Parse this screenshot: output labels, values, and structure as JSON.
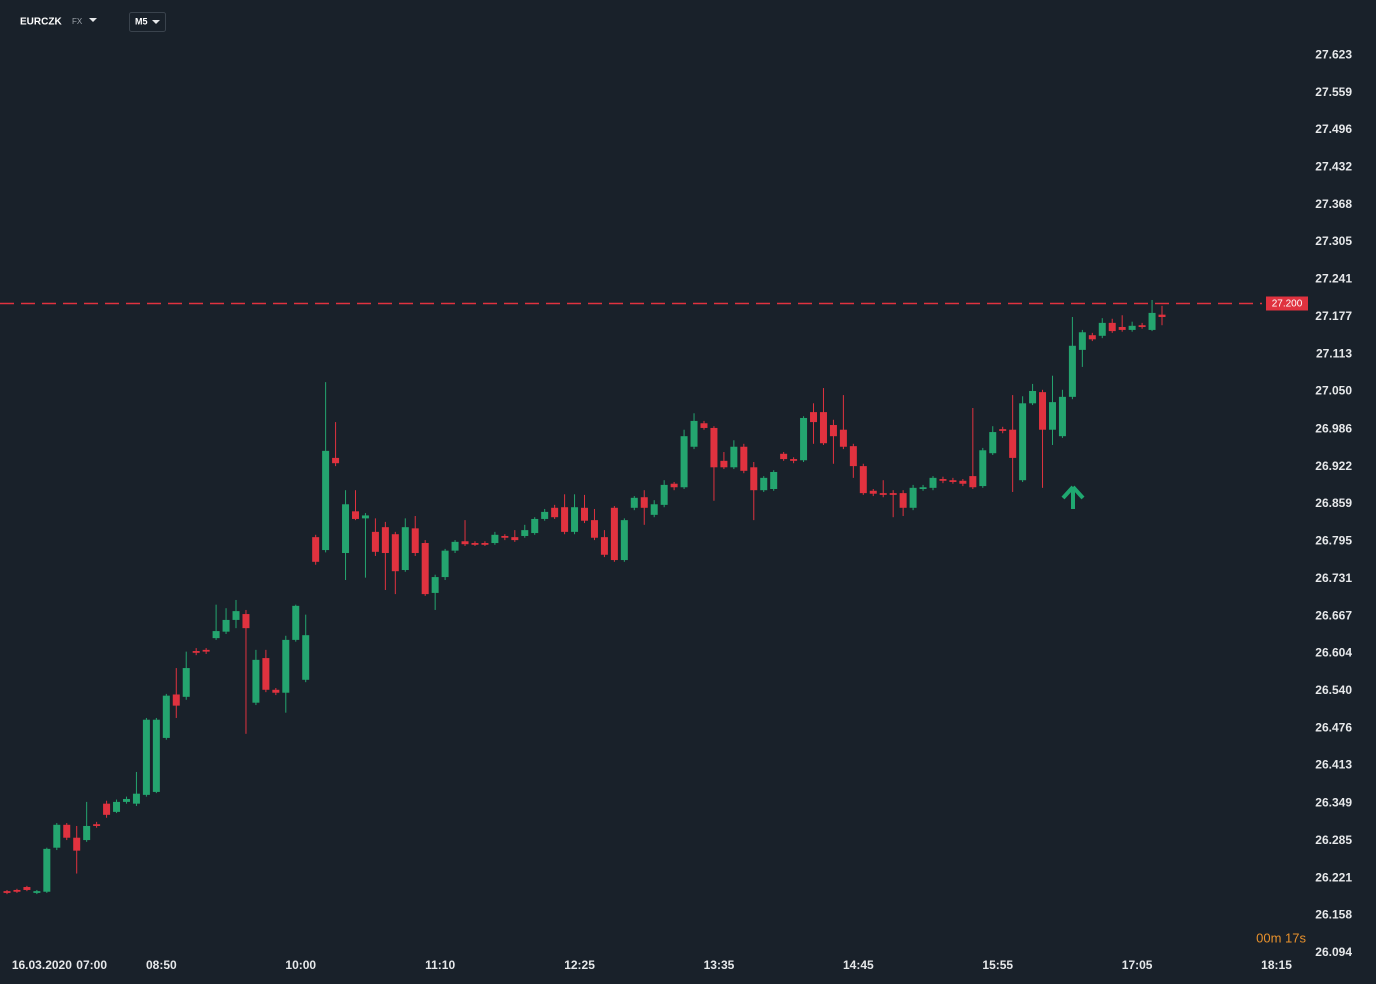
{
  "header": {
    "symbol": "EURCZK",
    "market": "FX",
    "timeframe": "M5",
    "countdown": "00m 17s"
  },
  "chart_data": {
    "type": "candlestick",
    "categories": [
      null,
      null,
      null,
      "16.03.2020",
      null,
      null,
      null,
      null,
      "07:00",
      null,
      null,
      null,
      null,
      null,
      null,
      "08:50",
      null,
      null,
      null,
      null,
      null,
      null,
      null,
      null,
      null,
      null,
      null,
      null,
      null,
      "10:00",
      null,
      null,
      null,
      null,
      null,
      null,
      null,
      null,
      null,
      null,
      null,
      null,
      null,
      "11:10",
      null,
      null,
      null,
      null,
      null,
      null,
      null,
      null,
      null,
      null,
      null,
      null,
      null,
      "12:25",
      null,
      null,
      null,
      null,
      null,
      null,
      null,
      null,
      null,
      null,
      null,
      null,
      null,
      "13:35",
      null,
      null,
      null,
      null,
      null,
      null,
      null,
      null,
      null,
      null,
      null,
      null,
      null,
      "14:45",
      null,
      null,
      null,
      null,
      null,
      null,
      null,
      null,
      null,
      null,
      null,
      null,
      null,
      "15:55",
      null,
      null,
      null,
      null,
      null,
      null,
      null,
      null,
      null,
      null,
      null,
      null,
      null,
      "17:05",
      null,
      null,
      null,
      null,
      null,
      null,
      null,
      null,
      null,
      null,
      null,
      null,
      null,
      "18:15"
    ],
    "open": [
      26.199,
      26.201,
      26.206,
      26.196,
      26.198,
      26.273,
      26.312,
      26.29,
      26.286,
      26.313,
      26.348,
      26.334,
      26.351,
      26.348,
      26.363,
      26.368,
      26.46,
      26.534,
      26.53,
      26.608,
      26.61,
      26.63,
      26.641,
      26.661,
      26.671,
      26.52,
      26.596,
      26.542,
      26.537,
      26.627,
      26.559,
      26.802,
      26.78,
      26.937,
      26.775,
      26.846,
      26.834,
      26.811,
      26.819,
      26.807,
      26.746,
      26.817,
      26.792,
      26.707,
      26.734,
      26.779,
      26.795,
      26.792,
      26.792,
      26.792,
      26.804,
      26.802,
      26.804,
      26.809,
      26.833,
      26.852,
      26.853,
      26.811,
      26.852,
      26.831,
      26.802,
      26.852,
      26.763,
      26.852,
      26.87,
      26.84,
      26.857,
      26.893,
      26.887,
      26.956,
      26.996,
      26.988,
      26.932,
      26.921,
      26.956,
      26.921,
      26.882,
      26.884,
      26.944,
      26.935,
      26.933,
      27.015,
      27.015,
      26.993,
      26.985,
      26.957,
      26.923,
      26.881,
      26.877,
      26.877,
      26.877,
      26.852,
      26.884,
      26.886,
      26.901,
      26.899,
      26.898,
      26.906,
      26.889,
      26.945,
      26.986,
      26.985,
      26.899,
      27.03,
      27.049,
      26.985,
      26.974,
      27.041,
      27.121,
      27.146,
      27.145,
      27.167,
      27.16,
      27.155,
      27.163,
      27.155,
      27.181,
      null,
      null,
      null,
      null,
      null,
      null,
      null,
      null,
      null,
      null,
      null
    ],
    "high": [
      26.201,
      26.203,
      26.208,
      26.201,
      26.273,
      26.315,
      26.315,
      26.31,
      26.351,
      26.317,
      26.353,
      26.355,
      26.36,
      26.402,
      26.494,
      26.494,
      26.535,
      26.579,
      26.607,
      26.613,
      26.613,
      26.687,
      26.681,
      26.695,
      26.678,
      26.61,
      26.61,
      26.545,
      26.634,
      26.687,
      26.67,
      26.806,
      27.066,
      26.998,
      26.882,
      26.882,
      26.843,
      26.834,
      26.828,
      26.811,
      26.834,
      26.838,
      26.797,
      26.738,
      26.782,
      26.797,
      26.831,
      26.795,
      26.795,
      26.811,
      26.807,
      26.814,
      26.823,
      26.836,
      26.85,
      26.857,
      26.875,
      26.875,
      26.874,
      26.85,
      26.814,
      26.855,
      26.834,
      26.872,
      26.882,
      26.865,
      26.899,
      26.896,
      26.985,
      27.013,
      27.0,
      26.991,
      26.947,
      26.967,
      26.961,
      26.93,
      26.906,
      26.916,
      26.947,
      26.938,
      27.008,
      27.03,
      27.056,
      27.002,
      27.044,
      26.961,
      26.927,
      26.884,
      26.899,
      26.882,
      26.882,
      26.891,
      26.891,
      26.906,
      26.905,
      26.903,
      26.901,
      27.022,
      26.954,
      26.991,
      26.99,
      27.044,
      27.042,
      27.063,
      27.053,
      27.077,
      27.053,
      27.177,
      27.155,
      27.15,
      27.175,
      27.174,
      27.18,
      27.169,
      27.167,
      27.206,
      27.196,
      null,
      null,
      null,
      null,
      null,
      null,
      null,
      null,
      null,
      null,
      null
    ],
    "low": [
      26.194,
      26.196,
      26.199,
      26.194,
      26.196,
      26.269,
      26.286,
      26.229,
      26.283,
      26.307,
      26.324,
      26.332,
      26.348,
      26.344,
      26.36,
      26.366,
      26.457,
      26.494,
      26.525,
      26.601,
      26.603,
      26.627,
      26.637,
      26.647,
      26.467,
      26.516,
      26.538,
      26.533,
      26.503,
      26.624,
      26.555,
      26.755,
      26.776,
      26.923,
      26.729,
      26.831,
      26.733,
      26.77,
      26.712,
      26.705,
      26.743,
      26.77,
      26.702,
      26.678,
      26.729,
      26.775,
      26.787,
      26.787,
      26.787,
      26.789,
      26.797,
      26.794,
      26.801,
      26.806,
      26.83,
      26.833,
      26.807,
      26.807,
      26.826,
      26.797,
      26.768,
      26.76,
      26.76,
      26.848,
      26.823,
      26.836,
      26.853,
      26.882,
      26.884,
      26.952,
      26.985,
      26.864,
      26.918,
      26.918,
      26.911,
      26.831,
      26.879,
      26.881,
      26.932,
      26.928,
      26.93,
      26.961,
      26.959,
      26.927,
      26.952,
      26.903,
      26.874,
      26.872,
      26.87,
      26.836,
      26.838,
      26.848,
      26.881,
      26.882,
      26.894,
      26.893,
      26.889,
      26.884,
      26.886,
      26.942,
      26.979,
      26.879,
      26.896,
      27.027,
      26.886,
      26.959,
      26.971,
      27.037,
      27.092,
      27.136,
      27.141,
      27.15,
      27.152,
      27.152,
      27.157,
      27.153,
      27.163,
      null,
      null,
      null,
      null,
      null,
      null,
      null,
      null,
      null,
      null,
      null
    ],
    "close": [
      26.196,
      26.198,
      26.201,
      26.199,
      26.271,
      26.312,
      26.29,
      26.268,
      26.31,
      26.31,
      26.329,
      26.351,
      26.356,
      26.365,
      26.491,
      26.491,
      26.532,
      26.515,
      26.579,
      26.605,
      26.607,
      26.642,
      26.661,
      26.676,
      26.647,
      26.593,
      26.542,
      26.537,
      26.627,
      26.685,
      26.635,
      26.76,
      26.949,
      26.928,
      26.858,
      26.833,
      26.839,
      26.777,
      26.775,
      26.744,
      26.819,
      26.775,
      26.705,
      26.734,
      26.779,
      26.794,
      26.79,
      26.789,
      26.789,
      26.806,
      26.801,
      26.797,
      26.814,
      26.833,
      26.845,
      26.836,
      26.811,
      26.853,
      26.83,
      26.801,
      26.772,
      26.763,
      26.831,
      26.869,
      26.852,
      26.858,
      26.891,
      26.887,
      26.974,
      27.0,
      26.988,
      26.921,
      26.921,
      26.956,
      26.915,
      26.882,
      26.903,
      26.913,
      26.935,
      26.932,
      27.005,
      26.998,
      26.962,
      26.974,
      26.956,
      26.923,
      26.877,
      26.876,
      26.874,
      26.874,
      26.852,
      26.886,
      26.887,
      26.903,
      26.898,
      26.896,
      26.893,
      26.887,
      26.95,
      26.981,
      26.983,
      26.937,
      27.03,
      27.051,
      26.985,
      27.032,
      27.041,
      27.128,
      27.151,
      27.139,
      27.167,
      27.153,
      27.155,
      27.162,
      27.16,
      27.184,
      27.177,
      null,
      null,
      null,
      null,
      null,
      null,
      null,
      null,
      null,
      null,
      null
    ],
    "up_color": "#24a56f",
    "down_color": "#e0323f",
    "ylim": [
      26.08,
      27.717
    ],
    "yticks": [
      26.094,
      26.158,
      26.221,
      26.285,
      26.349,
      26.413,
      26.476,
      {
        "value": 26.54,
        "label": "26.540"
      },
      26.604,
      26.667,
      26.731,
      26.795,
      26.859,
      26.922,
      26.986,
      {
        "value": 27.05,
        "label": "27.050"
      },
      27.113,
      27.177,
      27.241,
      27.305,
      27.368,
      27.432,
      27.496,
      27.559,
      27.623
    ],
    "price_line": {
      "value": 27.2,
      "label": "27.200",
      "color": "#e0323f"
    }
  }
}
